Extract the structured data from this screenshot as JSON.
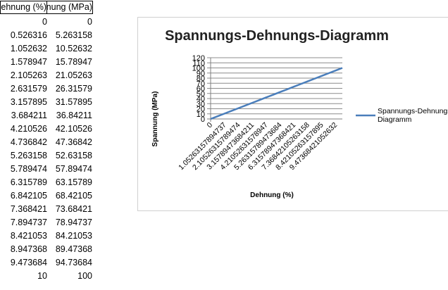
{
  "table": {
    "header_col1": "Dehnung (%)",
    "header_col2": "Spannung (MPa)",
    "rows": [
      [
        "0",
        "0"
      ],
      [
        "0.526316",
        "5.263158"
      ],
      [
        "1.052632",
        "10.52632"
      ],
      [
        "1.578947",
        "15.78947"
      ],
      [
        "2.105263",
        "21.05263"
      ],
      [
        "2.631579",
        "26.31579"
      ],
      [
        "3.157895",
        "31.57895"
      ],
      [
        "3.684211",
        "36.84211"
      ],
      [
        "4.210526",
        "42.10526"
      ],
      [
        "4.736842",
        "47.36842"
      ],
      [
        "5.263158",
        "52.63158"
      ],
      [
        "5.789474",
        "57.89474"
      ],
      [
        "6.315789",
        "63.15789"
      ],
      [
        "6.842105",
        "68.42105"
      ],
      [
        "7.368421",
        "73.68421"
      ],
      [
        "7.894737",
        "78.94737"
      ],
      [
        "8.421053",
        "84.21053"
      ],
      [
        "8.947368",
        "89.47368"
      ],
      [
        "9.473684",
        "94.73684"
      ],
      [
        "10",
        "100"
      ]
    ]
  },
  "chart_data": {
    "type": "line",
    "title": "Spannungs-Dehnungs-Diagramm",
    "xlabel": "Dehnung (%)",
    "ylabel": "Spannung (MPa)",
    "ylim": [
      0,
      120
    ],
    "yticks": [
      0,
      10,
      20,
      30,
      40,
      50,
      60,
      70,
      80,
      90,
      100,
      110,
      120
    ],
    "grid": true,
    "legend_position": "right",
    "x": [
      0,
      0.526315789473684,
      1.05263157894737,
      1.57894736842105,
      2.10526315789474,
      2.63157894736842,
      3.15789473684211,
      3.68421052631579,
      4.21052631578947,
      4.73684210526316,
      5.26315789473684,
      5.78947368421053,
      6.31578947368421,
      6.84210526315789,
      7.36842105263158,
      7.89473684210526,
      8.42105263157895,
      8.94736842105263,
      9.47368421052632,
      10
    ],
    "x_tick_labels": [
      "0",
      "1.05263157894737",
      "2.10526315789474",
      "3.15789473684211",
      "4.21052631578947",
      "5.26315789473684",
      "6.31578947368421",
      "7.36842105263158",
      "8.42105263157895",
      "9.47368421052632"
    ],
    "series": [
      {
        "name": "Spannungs-Dehnungs-Diagramm",
        "color": "#4a7ebb",
        "values": [
          0,
          5.263158,
          10.52632,
          15.78947,
          21.05263,
          26.31579,
          31.57895,
          36.84211,
          42.10526,
          47.36842,
          52.63158,
          57.89474,
          63.15789,
          68.42105,
          73.68421,
          78.94737,
          84.21053,
          89.47368,
          94.73684,
          100
        ]
      }
    ],
    "legend_text_visible": "Spannungs-Dehnungs-Diagramm"
  }
}
